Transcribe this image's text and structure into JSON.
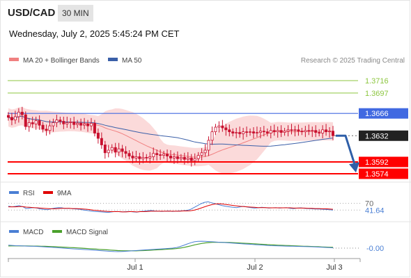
{
  "header": {
    "symbol": "USD/CAD",
    "timeframe": "30 MIN",
    "datetime": "Wednesday, July 2, 2025 5:45:24 PM CET"
  },
  "legend": {
    "ma20": "MA 20 + Bollinger Bands",
    "ma50": "MA 50",
    "source": "Research © 2025 Trading Central"
  },
  "colors": {
    "candle": "#c8102e",
    "ma20": "#f08080",
    "band": "#fbdada",
    "ma50": "#3a5fa8",
    "resistance": "#8cc63f",
    "pivot": "#4169e1",
    "support": "#ff0000",
    "arrow": "#2f5fa8",
    "rsi": "#4a7fd4",
    "rsi_ma": "#e00000",
    "macd": "#4a7fd4",
    "macd_signal": "#4aa02c"
  },
  "chart_data": [
    {
      "type": "candlestick",
      "x_labels": [
        "Jul 1",
        "Jul 2",
        "Jul 3"
      ],
      "levels": [
        {
          "label": "1.3716",
          "value": 1.3716,
          "kind": "resistance"
        },
        {
          "label": "1.3697",
          "value": 1.3697,
          "kind": "resistance"
        },
        {
          "label": "1.3666",
          "value": 1.3666,
          "kind": "pivot"
        },
        {
          "label": "1.3632",
          "value": 1.3632,
          "kind": "last"
        },
        {
          "label": "1.3592",
          "value": 1.3592,
          "kind": "support"
        },
        {
          "label": "1.3574",
          "value": 1.3574,
          "kind": "support"
        }
      ],
      "close": [
        1.366,
        1.3656,
        1.3661,
        1.3668,
        1.3664,
        1.3646,
        1.3652,
        1.365,
        1.3655,
        1.3648,
        1.3642,
        1.364,
        1.3647,
        1.3652,
        1.3656,
        1.3654,
        1.365,
        1.3652,
        1.3653,
        1.3649,
        1.3651,
        1.3648,
        1.365,
        1.3647,
        1.3651,
        1.3636,
        1.3628,
        1.3618,
        1.3606,
        1.361,
        1.3614,
        1.3607,
        1.3612,
        1.3608,
        1.3605,
        1.3601,
        1.3598,
        1.36,
        1.3597,
        1.3599,
        1.3598,
        1.36,
        1.3605,
        1.3603,
        1.3602,
        1.3604,
        1.3601,
        1.3598,
        1.36,
        1.3597,
        1.3599,
        1.3596,
        1.3598,
        1.3594,
        1.3597,
        1.3602,
        1.3606,
        1.361,
        1.3625,
        1.3638,
        1.3645,
        1.3647,
        1.3644,
        1.3641,
        1.3638,
        1.3636,
        1.3637,
        1.3635,
        1.3638,
        1.3637,
        1.3638,
        1.3636,
        1.3637,
        1.3639,
        1.3638,
        1.3636,
        1.364,
        1.3638,
        1.364,
        1.3637,
        1.3639,
        1.3641,
        1.364,
        1.3641,
        1.3639,
        1.3638,
        1.364,
        1.3639,
        1.364,
        1.3637,
        1.3636,
        1.3641,
        1.3638,
        1.3639,
        1.3632
      ],
      "projection": {
        "from": 1.3632,
        "to": 1.3578
      }
    },
    {
      "type": "line",
      "name": "RSI",
      "series": [
        {
          "name": "RSI"
        },
        {
          "name": "9MA"
        }
      ],
      "levels": [
        {
          "label": "70",
          "value": 70
        },
        {
          "label": "41.64",
          "value": 41.64
        }
      ],
      "rsi": [
        58,
        55,
        57,
        60,
        56,
        48,
        50,
        52,
        50,
        46,
        44,
        43,
        47,
        50,
        52,
        51,
        48,
        49,
        47,
        46,
        45,
        42,
        40,
        38,
        36,
        35,
        34,
        33,
        32,
        34,
        36,
        35,
        34,
        35,
        36,
        34,
        33,
        36,
        37,
        39,
        40,
        38,
        37,
        36,
        37,
        38,
        36,
        37,
        38,
        39,
        40,
        44,
        52,
        60,
        68,
        74,
        76,
        72,
        68,
        64,
        60,
        57,
        55,
        53,
        52,
        55,
        57,
        54,
        52,
        50,
        51,
        53,
        52,
        50,
        51,
        52,
        50,
        51,
        52,
        49,
        48,
        50,
        51,
        49,
        48,
        47,
        46,
        46,
        45,
        44,
        43,
        41.64
      ],
      "ma": [
        55,
        55,
        55,
        56,
        56,
        54,
        53,
        52,
        51,
        50,
        49,
        48,
        47,
        47,
        48,
        49,
        49,
        49,
        48,
        48,
        47,
        46,
        45,
        43,
        41,
        40,
        38,
        37,
        36,
        35,
        35,
        35,
        34,
        34,
        35,
        35,
        34,
        35,
        35,
        36,
        37,
        37,
        37,
        37,
        37,
        37,
        37,
        37,
        37,
        38,
        38,
        39,
        41,
        45,
        50,
        55,
        60,
        64,
        67,
        68,
        67,
        65,
        63,
        61,
        59,
        57,
        56,
        55,
        54,
        53,
        52,
        52,
        52,
        51,
        51,
        51,
        51,
        51,
        51,
        51,
        50,
        50,
        50,
        50,
        49,
        49,
        48,
        48,
        47,
        47,
        46,
        45
      ]
    },
    {
      "type": "line",
      "name": "MACD",
      "series": [
        {
          "name": "MACD"
        },
        {
          "name": "MACD Signal"
        }
      ],
      "levels": [
        {
          "label": "-0.00",
          "value": 0
        }
      ],
      "macd": [
        0.6,
        0.55,
        0.5,
        0.48,
        0.45,
        0.42,
        0.4,
        0.38,
        0.35,
        0.3,
        0.25,
        0.2,
        0.15,
        0.1,
        0.05,
        0,
        -0.05,
        -0.1,
        -0.15,
        -0.2,
        -0.25,
        -0.3,
        -0.35,
        -0.4,
        -0.45,
        -0.5,
        -0.55,
        -0.6,
        -0.65,
        -0.7,
        -0.72,
        -0.7,
        -0.65,
        -0.6,
        -0.55,
        -0.5,
        -0.45,
        -0.4,
        -0.35,
        -0.3,
        -0.25,
        -0.2,
        -0.15,
        -0.1,
        -0.05,
        0,
        0.1,
        0.3,
        0.55,
        0.85,
        1.1,
        1.3,
        1.4,
        1.42,
        1.4,
        1.35,
        1.3,
        1.25,
        1.2,
        1.15,
        1.1,
        1.05,
        1.0,
        0.95,
        0.9,
        0.85,
        0.8,
        0.75,
        0.7,
        0.65,
        0.6,
        0.55,
        0.5,
        0.48,
        0.46,
        0.44,
        0.42,
        0.4,
        0.38,
        0.36,
        0.34,
        0.32,
        0.3,
        0.28,
        0.26,
        0.22,
        0.18,
        0.14,
        0.1,
        0.05
      ],
      "signal": [
        0.45,
        0.46,
        0.46,
        0.46,
        0.45,
        0.44,
        0.43,
        0.42,
        0.41,
        0.39,
        0.37,
        0.34,
        0.31,
        0.28,
        0.24,
        0.2,
        0.16,
        0.12,
        0.08,
        0.04,
        0,
        -0.05,
        -0.1,
        -0.15,
        -0.2,
        -0.25,
        -0.3,
        -0.35,
        -0.4,
        -0.45,
        -0.5,
        -0.53,
        -0.55,
        -0.56,
        -0.56,
        -0.55,
        -0.53,
        -0.5,
        -0.47,
        -0.43,
        -0.39,
        -0.35,
        -0.3,
        -0.25,
        -0.2,
        -0.15,
        -0.1,
        0,
        0.12,
        0.28,
        0.46,
        0.65,
        0.82,
        0.96,
        1.07,
        1.14,
        1.18,
        1.2,
        1.2,
        1.19,
        1.17,
        1.14,
        1.11,
        1.07,
        1.03,
        0.99,
        0.95,
        0.9,
        0.86,
        0.81,
        0.77,
        0.72,
        0.68,
        0.64,
        0.6,
        0.57,
        0.54,
        0.51,
        0.48,
        0.45,
        0.42,
        0.39,
        0.37,
        0.34,
        0.31,
        0.28,
        0.25,
        0.22,
        0.19,
        0.15
      ]
    }
  ]
}
